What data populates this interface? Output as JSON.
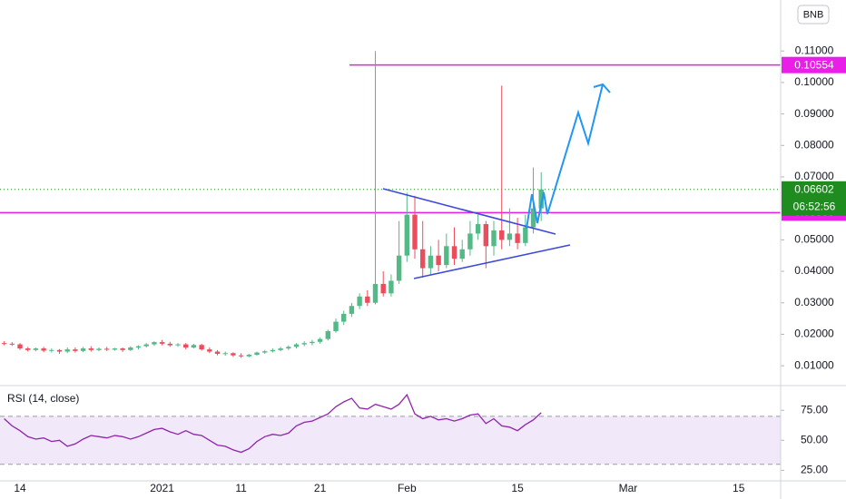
{
  "chart_data": [
    {
      "type": "candlestick",
      "symbol": "BNB",
      "x": [
        -2,
        -1,
        0,
        1,
        2,
        3,
        4,
        5,
        6,
        7,
        8,
        9,
        10,
        11,
        12,
        13,
        14,
        15,
        16,
        17,
        18,
        19,
        20,
        21,
        22,
        23,
        24,
        25,
        26,
        27,
        28,
        29,
        30,
        31,
        32,
        33,
        34,
        35,
        36,
        37,
        38,
        39,
        40,
        41,
        42,
        43,
        44,
        45,
        46,
        47,
        48,
        49,
        50,
        51,
        52,
        53,
        54,
        55,
        56,
        57,
        58,
        59,
        60,
        61,
        62,
        63,
        64,
        65,
        66
      ],
      "open": [
        0.0172,
        0.017,
        0.0168,
        0.0155,
        0.015,
        0.0155,
        0.0148,
        0.015,
        0.0145,
        0.0152,
        0.0147,
        0.0155,
        0.015,
        0.0154,
        0.0151,
        0.0155,
        0.015,
        0.0158,
        0.0162,
        0.0168,
        0.0175,
        0.017,
        0.0165,
        0.0168,
        0.0158,
        0.0166,
        0.0152,
        0.0145,
        0.0138,
        0.014,
        0.0133,
        0.013,
        0.0135,
        0.0142,
        0.0146,
        0.015,
        0.0155,
        0.016,
        0.0168,
        0.0172,
        0.0176,
        0.0185,
        0.021,
        0.024,
        0.0265,
        0.029,
        0.032,
        0.03,
        0.036,
        0.033,
        0.037,
        0.045,
        0.058,
        0.047,
        0.041,
        0.045,
        0.042,
        0.048,
        0.044,
        0.047,
        0.052,
        0.055,
        0.048,
        0.053,
        0.05,
        0.052,
        0.049,
        0.054,
        0.06
      ],
      "high": [
        0.0178,
        0.0175,
        0.0172,
        0.016,
        0.0158,
        0.016,
        0.0155,
        0.0153,
        0.0158,
        0.0158,
        0.016,
        0.0162,
        0.0158,
        0.016,
        0.0157,
        0.0158,
        0.0162,
        0.0165,
        0.0172,
        0.0178,
        0.0182,
        0.0176,
        0.0172,
        0.0172,
        0.017,
        0.017,
        0.0158,
        0.015,
        0.0145,
        0.0143,
        0.014,
        0.0138,
        0.0145,
        0.015,
        0.0155,
        0.016,
        0.0165,
        0.0172,
        0.0178,
        0.0182,
        0.019,
        0.0215,
        0.025,
        0.0275,
        0.03,
        0.033,
        0.034,
        0.11,
        0.04,
        0.039,
        0.056,
        0.065,
        0.064,
        0.056,
        0.048,
        0.05,
        0.052,
        0.054,
        0.05,
        0.056,
        0.058,
        0.056,
        0.056,
        0.099,
        0.06,
        0.057,
        0.058,
        0.073,
        0.0715
      ],
      "low": [
        0.0165,
        0.0163,
        0.015,
        0.0145,
        0.0146,
        0.0143,
        0.0142,
        0.0138,
        0.014,
        0.0142,
        0.0143,
        0.0145,
        0.0146,
        0.0147,
        0.0148,
        0.0144,
        0.0147,
        0.0152,
        0.0158,
        0.0163,
        0.0165,
        0.016,
        0.016,
        0.0152,
        0.0155,
        0.0148,
        0.014,
        0.0133,
        0.0132,
        0.0128,
        0.0125,
        0.0127,
        0.0132,
        0.0138,
        0.0142,
        0.0146,
        0.015,
        0.0155,
        0.0162,
        0.0165,
        0.017,
        0.018,
        0.0205,
        0.023,
        0.0255,
        0.028,
        0.029,
        0.0295,
        0.032,
        0.032,
        0.036,
        0.043,
        0.044,
        0.038,
        0.039,
        0.04,
        0.041,
        0.042,
        0.043,
        0.045,
        0.05,
        0.041,
        0.045,
        0.047,
        0.048,
        0.047,
        0.048,
        0.052,
        0.056
      ],
      "close": [
        0.017,
        0.0168,
        0.0155,
        0.015,
        0.0155,
        0.0148,
        0.015,
        0.0145,
        0.0152,
        0.0147,
        0.0155,
        0.015,
        0.0154,
        0.0151,
        0.0155,
        0.015,
        0.0158,
        0.0162,
        0.0168,
        0.0175,
        0.017,
        0.0165,
        0.0168,
        0.0158,
        0.0166,
        0.0152,
        0.0145,
        0.0138,
        0.014,
        0.0133,
        0.013,
        0.0135,
        0.0142,
        0.0146,
        0.015,
        0.0155,
        0.016,
        0.0168,
        0.0172,
        0.0176,
        0.0185,
        0.021,
        0.024,
        0.0265,
        0.029,
        0.032,
        0.03,
        0.036,
        0.033,
        0.037,
        0.045,
        0.058,
        0.047,
        0.041,
        0.045,
        0.042,
        0.048,
        0.044,
        0.047,
        0.052,
        0.055,
        0.048,
        0.053,
        0.05,
        0.052,
        0.049,
        0.054,
        0.06,
        0.06602
      ],
      "up_color": "#53b987",
      "down_color": "#eb4d5c",
      "xlim": [
        -2.53,
        96.32
      ],
      "ylim": [
        0.0037,
        0.1262
      ],
      "xticks": [
        {
          "value": 0,
          "label": "14"
        },
        {
          "value": 18,
          "label": "2021"
        },
        {
          "value": 28,
          "label": "11"
        },
        {
          "value": 38,
          "label": "21"
        },
        {
          "value": 49,
          "label": "Feb"
        },
        {
          "value": 63,
          "label": "15"
        },
        {
          "value": 77,
          "label": "Mar"
        },
        {
          "value": 91,
          "label": "15"
        }
      ],
      "yticks": [
        {
          "value": 0.01,
          "label": "0.01000"
        },
        {
          "value": 0.02,
          "label": "0.02000"
        },
        {
          "value": 0.03,
          "label": "0.03000"
        },
        {
          "value": 0.04,
          "label": "0.04000"
        },
        {
          "value": 0.05,
          "label": "0.05000"
        },
        {
          "value": 0.07,
          "label": "0.07000"
        },
        {
          "value": 0.08,
          "label": "0.08000"
        },
        {
          "value": 0.09,
          "label": "0.09000"
        },
        {
          "value": 0.1,
          "label": "0.10000"
        },
        {
          "value": 0.11,
          "label": "0.11000"
        }
      ],
      "last_price": 0.06602,
      "last_color": "#1e8c1e",
      "countdown": "06:52:56",
      "levels": [
        {
          "value": 0.10554,
          "color": "#e91ee9"
        },
        {
          "value": 0.05866,
          "color": "#e91ee9"
        }
      ]
    },
    {
      "type": "line",
      "title": "RSI (14, close)",
      "color": "#8e24aa",
      "x": [
        -2,
        -1,
        0,
        1,
        2,
        3,
        4,
        5,
        6,
        7,
        8,
        9,
        10,
        11,
        12,
        13,
        14,
        15,
        16,
        17,
        18,
        19,
        20,
        21,
        22,
        23,
        24,
        25,
        26,
        27,
        28,
        29,
        30,
        31,
        32,
        33,
        34,
        35,
        36,
        37,
        38,
        39,
        40,
        41,
        42,
        43,
        44,
        45,
        46,
        47,
        48,
        49,
        50,
        51,
        52,
        53,
        54,
        55,
        56,
        57,
        58,
        59,
        60,
        61,
        62,
        63,
        64,
        65,
        66
      ],
      "values": [
        68,
        62,
        58,
        53,
        51,
        52,
        49,
        50,
        45,
        47,
        51,
        54,
        53,
        52,
        54,
        53,
        51,
        53,
        56,
        59,
        60,
        57,
        55,
        58,
        55,
        54,
        50,
        46,
        45,
        42,
        40,
        43,
        49,
        53,
        55,
        54,
        56,
        62,
        65,
        66,
        69,
        72,
        78,
        82,
        85,
        77,
        76,
        80,
        78,
        76,
        80,
        88,
        72,
        68,
        70,
        67,
        68,
        66,
        68,
        71,
        72,
        64,
        68,
        62,
        61,
        58,
        63,
        67,
        73
      ],
      "band": [
        30,
        70
      ],
      "band_color": "#e6d5f5",
      "ylim": [
        16.2,
        95.6
      ],
      "yticks": [
        {
          "value": 25,
          "label": "25.00"
        },
        {
          "value": 50,
          "label": "50.00"
        },
        {
          "value": 75,
          "label": "75.00"
        }
      ]
    }
  ]
}
